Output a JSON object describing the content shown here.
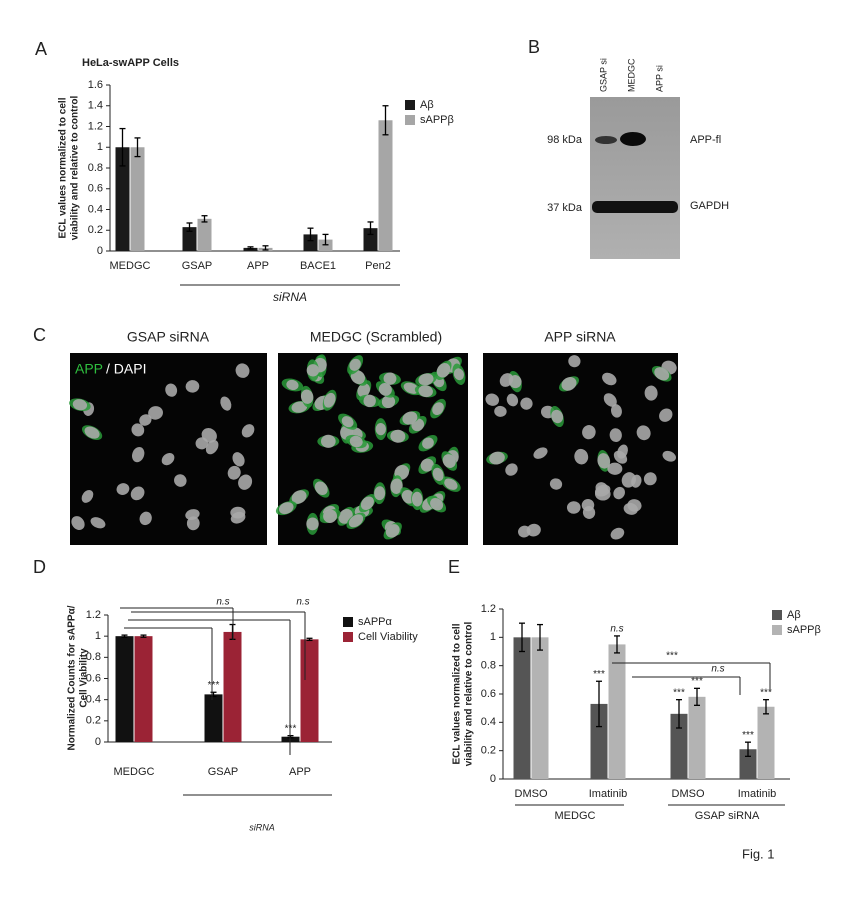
{
  "panel_labels": [
    "A",
    "B",
    "C",
    "D",
    "E"
  ],
  "blot": {
    "lanes": [
      "GSAP si",
      "MEDGC",
      "APP si"
    ],
    "markers": [
      "98 kDa",
      "37 kDa"
    ],
    "bands": [
      "APP-fl",
      "GAPDH"
    ]
  },
  "micrographs": {
    "titles": [
      "GSAP siRNA",
      "MEDGC (Scrambled)",
      "APP siRNA"
    ],
    "stain_labels": [
      "APP",
      "/ DAPI"
    ]
  },
  "figure_label": "Fig. 1",
  "chart_data": [
    {
      "type": "bar",
      "title": "HeLa-swAPP Cells",
      "ylabel": [
        "ECL values normalized to cell",
        "viability and relative to control"
      ],
      "categories": [
        "MEDGC",
        "GSAP",
        "APP",
        "BACE1",
        "Pen2"
      ],
      "group_labels": [
        "siRNA"
      ],
      "series": [
        {
          "name": "Aβ",
          "color": "#1a1a1a",
          "values": [
            1,
            0.23,
            0.03,
            0.16,
            0.22
          ],
          "errors": [
            0.18,
            0.04,
            0.01,
            0.06,
            0.06
          ]
        },
        {
          "name": "sAPPβ",
          "color": "#a6a6a6",
          "values": [
            1,
            0.31,
            0.03,
            0.11,
            1.26
          ],
          "errors": [
            0.09,
            0.03,
            0.02,
            0.05,
            0.14
          ]
        }
      ],
      "ylim": [
        0,
        1.6
      ],
      "yticks": [
        0,
        0.2,
        0.4,
        0.6,
        0.8,
        1,
        1.2,
        1.4,
        1.6
      ],
      "grid": false,
      "legend": "upper right"
    },
    {
      "type": "bar",
      "ylabel": [
        "Normalized Counts for sAPPα/",
        "Cell Viability"
      ],
      "categories": [
        "MEDGC",
        "GSAP",
        "APP"
      ],
      "group_labels": [
        "siRNA"
      ],
      "comparisons": [
        "n.s",
        "n.s"
      ],
      "series": [
        {
          "name": "sAPPα",
          "color": "#111111",
          "values": [
            1,
            0.45,
            0.05
          ],
          "errors": [
            0.01,
            0.02,
            0.01
          ],
          "significance": [
            null,
            "***",
            "***"
          ]
        },
        {
          "name": "Cell Viability",
          "color": "#9b2335",
          "values": [
            1,
            1.04,
            0.97
          ],
          "errors": [
            0.01,
            0.07,
            0.01
          ]
        }
      ],
      "ylim": [
        0,
        1.2
      ],
      "yticks": [
        0,
        0.2,
        0.4,
        0.6,
        0.8,
        1,
        1.2
      ],
      "grid": false,
      "legend": "upper right"
    },
    {
      "type": "bar",
      "ylabel": [
        "ECL values normalized to cell",
        "viability and relative to control"
      ],
      "categories": [
        "DMSO",
        "Imatinib",
        "DMSO",
        "Imatinib"
      ],
      "group_labels": [
        "MEDGC",
        "GSAP siRNA"
      ],
      "comparisons": [
        "***",
        "n.s"
      ],
      "series": [
        {
          "name": "Aβ",
          "color": "#555555",
          "values": [
            1,
            0.53,
            0.46,
            0.21
          ],
          "errors": [
            0.1,
            0.16,
            0.1,
            0.05
          ],
          "significance": [
            null,
            "***",
            "***",
            "***"
          ]
        },
        {
          "name": "sAPPβ",
          "color": "#b3b3b3",
          "values": [
            1,
            0.95,
            0.58,
            0.51
          ],
          "errors": [
            0.09,
            0.06,
            0.06,
            0.05
          ],
          "significance": [
            null,
            "n.s",
            "***",
            "***"
          ]
        }
      ],
      "ylim": [
        0,
        1.2
      ],
      "yticks": [
        0,
        0.2,
        0.4,
        0.6,
        0.8,
        1,
        1.2
      ],
      "grid": false,
      "legend": "upper right"
    }
  ]
}
